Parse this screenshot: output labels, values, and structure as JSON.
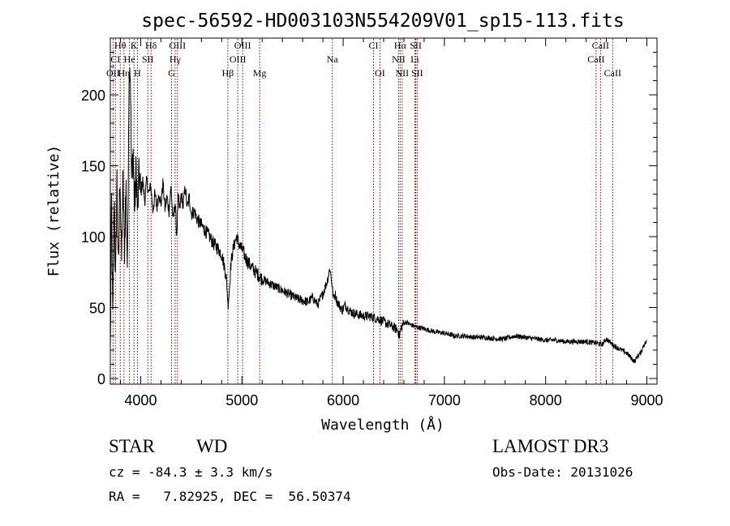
{
  "chart_data": {
    "type": "line",
    "title": "spec-56592-HD003103N554209V01_sp15-113.fits",
    "xlabel": "Wavelength (Å)",
    "ylabel": "Flux (relative)",
    "xlim": [
      3700,
      9100
    ],
    "ylim": [
      -4,
      240
    ],
    "xticks": [
      4000,
      5000,
      6000,
      7000,
      8000,
      9000
    ],
    "yticks": [
      0,
      50,
      100,
      150,
      200
    ],
    "series": [
      {
        "name": "flux",
        "x": [
          3700,
          3712,
          3725,
          3740,
          3752,
          3765,
          3780,
          3795,
          3810,
          3825,
          3840,
          3855,
          3870,
          3880,
          3890,
          3900,
          3910,
          3925,
          3940,
          3955,
          3970,
          3985,
          4000,
          4020,
          4040,
          4060,
          4080,
          4100,
          4120,
          4140,
          4160,
          4180,
          4200,
          4220,
          4240,
          4260,
          4280,
          4300,
          4320,
          4340,
          4355,
          4370,
          4385,
          4400,
          4420,
          4440,
          4460,
          4480,
          4500,
          4530,
          4560,
          4600,
          4640,
          4680,
          4720,
          4760,
          4800,
          4830,
          4850,
          4862,
          4875,
          4890,
          4910,
          4930,
          4950,
          4970,
          4990,
          5010,
          5030,
          5060,
          5100,
          5150,
          5200,
          5250,
          5300,
          5350,
          5400,
          5450,
          5500,
          5550,
          5600,
          5650,
          5700,
          5750,
          5800,
          5840,
          5870,
          5890,
          5905,
          5920,
          5940,
          5960,
          5990,
          6020,
          6060,
          6100,
          6150,
          6200,
          6250,
          6300,
          6350,
          6400,
          6450,
          6500,
          6540,
          6555,
          6563,
          6575,
          6590,
          6620,
          6660,
          6700,
          6750,
          6800,
          6900,
          7000,
          7100,
          7200,
          7300,
          7400,
          7500,
          7600,
          7700,
          7800,
          7900,
          8000,
          8100,
          8200,
          8300,
          8400,
          8500,
          8560,
          8600,
          8660,
          8700,
          8750,
          8800,
          8850,
          8880,
          8910,
          8940,
          8970,
          9000
        ],
        "values": [
          18,
          125,
          35,
          135,
          60,
          145,
          70,
          150,
          80,
          140,
          90,
          138,
          72,
          180,
          230,
          210,
          140,
          160,
          118,
          150,
          115,
          146,
          130,
          140,
          125,
          140,
          130,
          136,
          118,
          130,
          120,
          132,
          122,
          138,
          120,
          128,
          118,
          135,
          110,
          125,
          100,
          128,
          118,
          130,
          122,
          135,
          120,
          128,
          116,
          118,
          112,
          108,
          104,
          100,
          95,
          92,
          88,
          78,
          68,
          52,
          62,
          80,
          90,
          96,
          100,
          95,
          92,
          90,
          86,
          82,
          78,
          74,
          70,
          68,
          66,
          64,
          62,
          60,
          58,
          56,
          55,
          54,
          57,
          52,
          60,
          68,
          78,
          66,
          56,
          60,
          54,
          52,
          48,
          52,
          48,
          46,
          45,
          44,
          44,
          43,
          42,
          40,
          38,
          36,
          34,
          30,
          32,
          36,
          38,
          40,
          38,
          37,
          36,
          35,
          33,
          32,
          30,
          30,
          29,
          29,
          28,
          28,
          30,
          29,
          28,
          27,
          27,
          26,
          26,
          26,
          25,
          24,
          28,
          24,
          22,
          20,
          18,
          14,
          12,
          16,
          18,
          24,
          26
        ]
      }
    ],
    "line_markers": [
      {
        "label": "Hθ",
        "x": 3798,
        "row": 0
      },
      {
        "label": "K",
        "x": 3934,
        "row": 0
      },
      {
        "label": "Hδ",
        "x": 4102,
        "row": 0
      },
      {
        "label": "OIII",
        "x": 4363,
        "row": 0
      },
      {
        "label": "OIII",
        "x": 5007,
        "row": 0
      },
      {
        "label": "CI",
        "x": 6300,
        "row": 0
      },
      {
        "label": "Hα",
        "x": 6563,
        "row": 0
      },
      {
        "label": "SII",
        "x": 6717,
        "row": 0
      },
      {
        "label": "CaII",
        "x": 8542,
        "row": 0
      },
      {
        "label": "CI",
        "x": 3750,
        "row": 1
      },
      {
        "label": "He",
        "x": 3889,
        "row": 1
      },
      {
        "label": "SII",
        "x": 4070,
        "row": 1
      },
      {
        "label": "Hγ",
        "x": 4340,
        "row": 1
      },
      {
        "label": "OIII",
        "x": 4959,
        "row": 1
      },
      {
        "label": "Na",
        "x": 5893,
        "row": 1
      },
      {
        "label": "NII",
        "x": 6548,
        "row": 1
      },
      {
        "label": "Li",
        "x": 6708,
        "row": 1
      },
      {
        "label": "CaII",
        "x": 8498,
        "row": 1
      },
      {
        "label": "OII",
        "x": 3727,
        "row": 2
      },
      {
        "label": "Hη",
        "x": 3835,
        "row": 2
      },
      {
        "label": "H",
        "x": 3968,
        "row": 2
      },
      {
        "label": "G",
        "x": 4305,
        "row": 2
      },
      {
        "label": "Hβ",
        "x": 4861,
        "row": 2
      },
      {
        "label": "Mg",
        "x": 5175,
        "row": 2
      },
      {
        "label": "OI",
        "x": 6363,
        "row": 2
      },
      {
        "label": "NII",
        "x": 6583,
        "row": 2
      },
      {
        "label": "SII",
        "x": 6731,
        "row": 2
      },
      {
        "label": "CaII",
        "x": 8662,
        "row": 2
      }
    ]
  },
  "info": {
    "class": "STAR",
    "subclass": "WD",
    "survey": "LAMOST DR3",
    "cz": "cz = -84.3 ± 3.3 km/s",
    "obs_date": "Obs-Date: 20131026",
    "coords": "RA =   7.82925, DEC =  56.50374"
  }
}
